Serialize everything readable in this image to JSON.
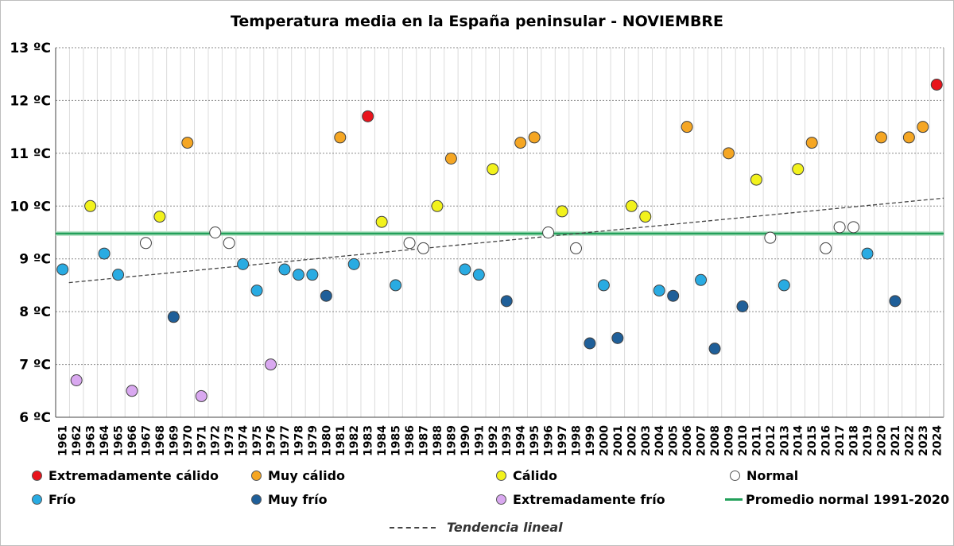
{
  "chart_data": {
    "type": "scatter",
    "title": "Temperatura media en la España peninsular - NOVIEMBRE",
    "ylim": [
      6,
      13
    ],
    "yticks": [
      "6 ºC",
      "7 ºC",
      "8 ºC",
      "9 ºC",
      "10 ºC",
      "11 ºC",
      "12 ºC",
      "13 ºC"
    ],
    "grid": true,
    "legend_position": "bottom",
    "categories": {
      "ext_calido": {
        "label": "Extremadamente cálido",
        "color": "#e8141c"
      },
      "muy_calido": {
        "label": "Muy cálido",
        "color": "#f5a623"
      },
      "calido": {
        "label": "Cálido",
        "color": "#f2f21c"
      },
      "normal": {
        "label": "Normal",
        "color": "#ffffff"
      },
      "frio": {
        "label": "Frío",
        "color": "#29abe2"
      },
      "muy_frio": {
        "label": "Muy frío",
        "color": "#1f5f99"
      },
      "ext_frio": {
        "label": "Extremadamente frío",
        "color": "#d9a8f0"
      }
    },
    "reference_line": {
      "label": "Promedio normal 1991-2020",
      "value": 9.48,
      "color": "#22a05a"
    },
    "trend": {
      "label": "Tendencia lineal",
      "start": 8.55,
      "end": 10.15,
      "color": "#444444"
    },
    "points": [
      {
        "year": "1961",
        "value": 8.8,
        "cat": "frio"
      },
      {
        "year": "1962",
        "value": 6.7,
        "cat": "ext_frio"
      },
      {
        "year": "1963",
        "value": 10.0,
        "cat": "calido"
      },
      {
        "year": "1964",
        "value": 9.1,
        "cat": "frio"
      },
      {
        "year": "1965",
        "value": 8.7,
        "cat": "frio"
      },
      {
        "year": "1966",
        "value": 6.5,
        "cat": "ext_frio"
      },
      {
        "year": "1967",
        "value": 9.3,
        "cat": "normal"
      },
      {
        "year": "1968",
        "value": 9.8,
        "cat": "calido"
      },
      {
        "year": "1969",
        "value": 7.9,
        "cat": "muy_frio"
      },
      {
        "year": "1970",
        "value": 11.2,
        "cat": "muy_calido"
      },
      {
        "year": "1971",
        "value": 6.4,
        "cat": "ext_frio"
      },
      {
        "year": "1972",
        "value": 9.5,
        "cat": "normal"
      },
      {
        "year": "1973",
        "value": 9.3,
        "cat": "normal"
      },
      {
        "year": "1974",
        "value": 8.9,
        "cat": "frio"
      },
      {
        "year": "1975",
        "value": 8.4,
        "cat": "frio"
      },
      {
        "year": "1976",
        "value": 7.0,
        "cat": "ext_frio"
      },
      {
        "year": "1977",
        "value": 8.8,
        "cat": "frio"
      },
      {
        "year": "1978",
        "value": 8.7,
        "cat": "frio"
      },
      {
        "year": "1979",
        "value": 8.7,
        "cat": "frio"
      },
      {
        "year": "1980",
        "value": 8.3,
        "cat": "muy_frio"
      },
      {
        "year": "1981",
        "value": 11.3,
        "cat": "muy_calido"
      },
      {
        "year": "1982",
        "value": 8.9,
        "cat": "frio"
      },
      {
        "year": "1983",
        "value": 11.7,
        "cat": "ext_calido"
      },
      {
        "year": "1984",
        "value": 9.7,
        "cat": "calido"
      },
      {
        "year": "1985",
        "value": 8.5,
        "cat": "frio"
      },
      {
        "year": "1986",
        "value": 9.3,
        "cat": "normal"
      },
      {
        "year": "1987",
        "value": 9.2,
        "cat": "normal"
      },
      {
        "year": "1988",
        "value": 10.0,
        "cat": "calido"
      },
      {
        "year": "1989",
        "value": 10.9,
        "cat": "muy_calido"
      },
      {
        "year": "1990",
        "value": 8.8,
        "cat": "frio"
      },
      {
        "year": "1991",
        "value": 8.7,
        "cat": "frio"
      },
      {
        "year": "1992",
        "value": 10.7,
        "cat": "calido"
      },
      {
        "year": "1993",
        "value": 8.2,
        "cat": "muy_frio"
      },
      {
        "year": "1994",
        "value": 11.2,
        "cat": "muy_calido"
      },
      {
        "year": "1995",
        "value": 11.3,
        "cat": "muy_calido"
      },
      {
        "year": "1996",
        "value": 9.5,
        "cat": "normal"
      },
      {
        "year": "1997",
        "value": 9.9,
        "cat": "calido"
      },
      {
        "year": "1998",
        "value": 9.2,
        "cat": "normal"
      },
      {
        "year": "1999",
        "value": 7.4,
        "cat": "muy_frio"
      },
      {
        "year": "2000",
        "value": 8.5,
        "cat": "frio"
      },
      {
        "year": "2001",
        "value": 7.5,
        "cat": "muy_frio"
      },
      {
        "year": "2002",
        "value": 10.0,
        "cat": "calido"
      },
      {
        "year": "2003",
        "value": 9.8,
        "cat": "calido"
      },
      {
        "year": "2004",
        "value": 8.4,
        "cat": "frio"
      },
      {
        "year": "2005",
        "value": 8.3,
        "cat": "muy_frio"
      },
      {
        "year": "2006",
        "value": 11.5,
        "cat": "muy_calido"
      },
      {
        "year": "2007",
        "value": 8.6,
        "cat": "frio"
      },
      {
        "year": "2008",
        "value": 7.3,
        "cat": "muy_frio"
      },
      {
        "year": "2009",
        "value": 11.0,
        "cat": "muy_calido"
      },
      {
        "year": "2010",
        "value": 8.1,
        "cat": "muy_frio"
      },
      {
        "year": "2011",
        "value": 10.5,
        "cat": "calido"
      },
      {
        "year": "2012",
        "value": 9.4,
        "cat": "normal"
      },
      {
        "year": "2013",
        "value": 8.5,
        "cat": "frio"
      },
      {
        "year": "2014",
        "value": 10.7,
        "cat": "calido"
      },
      {
        "year": "2015",
        "value": 11.2,
        "cat": "muy_calido"
      },
      {
        "year": "2016",
        "value": 9.2,
        "cat": "normal"
      },
      {
        "year": "2017",
        "value": 9.6,
        "cat": "normal"
      },
      {
        "year": "2018",
        "value": 9.6,
        "cat": "normal"
      },
      {
        "year": "2019",
        "value": 9.1,
        "cat": "frio"
      },
      {
        "year": "2020",
        "value": 11.3,
        "cat": "muy_calido"
      },
      {
        "year": "2021",
        "value": 8.2,
        "cat": "muy_frio"
      },
      {
        "year": "2022",
        "value": 11.3,
        "cat": "muy_calido"
      },
      {
        "year": "2023",
        "value": 11.5,
        "cat": "muy_calido"
      },
      {
        "year": "2024",
        "value": 12.3,
        "cat": "ext_calido"
      }
    ]
  }
}
